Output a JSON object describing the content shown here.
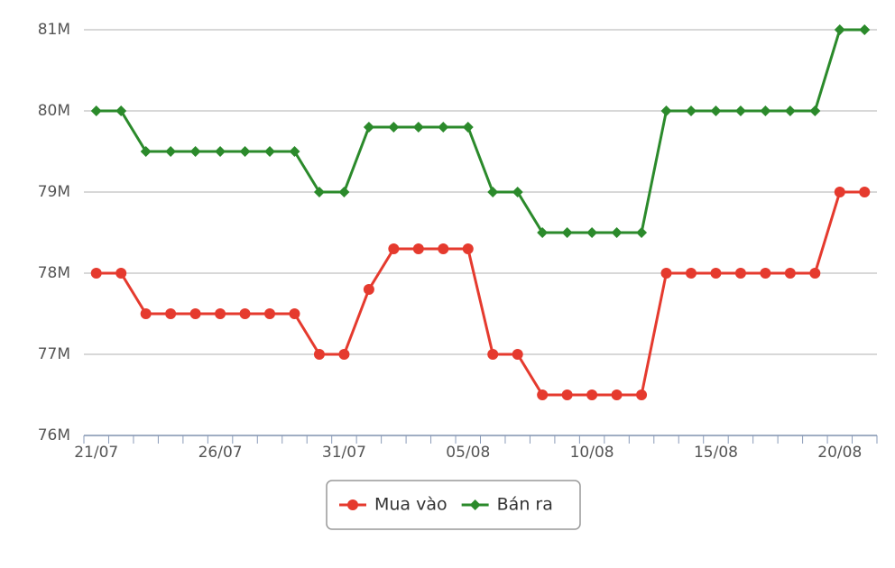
{
  "chart_data": {
    "type": "line",
    "categories": [
      "21/07",
      null,
      null,
      null,
      null,
      "26/07",
      null,
      null,
      null,
      null,
      "31/07",
      null,
      null,
      null,
      null,
      "05/08",
      null,
      null,
      null,
      null,
      "10/08",
      null,
      null,
      null,
      null,
      "15/08",
      null,
      null,
      null,
      null,
      "20/08",
      null
    ],
    "series": [
      {
        "name": "Mua vào",
        "color": "#e53a2e",
        "marker": "circle",
        "values": [
          78000000,
          78000000,
          77500000,
          77500000,
          77500000,
          77500000,
          77500000,
          77500000,
          77500000,
          77000000,
          77000000,
          77800000,
          78300000,
          78300000,
          78300000,
          78300000,
          77000000,
          77000000,
          76500000,
          76500000,
          76500000,
          76500000,
          76500000,
          78000000,
          78000000,
          78000000,
          78000000,
          78000000,
          78000000,
          78000000,
          79000000,
          79000000
        ]
      },
      {
        "name": "Bán ra",
        "color": "#2b8a2b",
        "marker": "diamond",
        "values": [
          80000000,
          80000000,
          79500000,
          79500000,
          79500000,
          79500000,
          79500000,
          79500000,
          79500000,
          79000000,
          79000000,
          79800000,
          79800000,
          79800000,
          79800000,
          79800000,
          79000000,
          79000000,
          78500000,
          78500000,
          78500000,
          78500000,
          78500000,
          80000000,
          80000000,
          80000000,
          80000000,
          80000000,
          80000000,
          80000000,
          81000000,
          81000000
        ]
      }
    ],
    "ylim": [
      76000000,
      81000000
    ],
    "yticks": [
      {
        "value": 76000000,
        "label": "76M"
      },
      {
        "value": 77000000,
        "label": "77M"
      },
      {
        "value": 78000000,
        "label": "78M"
      },
      {
        "value": 79000000,
        "label": "79M"
      },
      {
        "value": 80000000,
        "label": "80M"
      },
      {
        "value": 81000000,
        "label": "81M"
      }
    ],
    "grid": true,
    "legend": "bottom"
  }
}
